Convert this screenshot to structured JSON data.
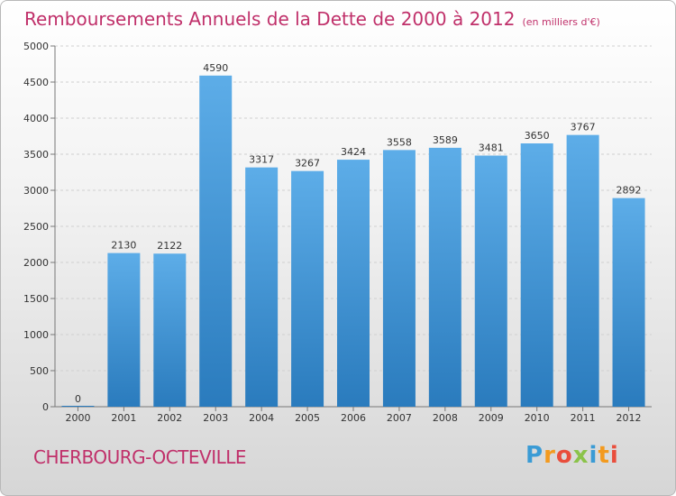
{
  "header": {
    "title": "Remboursements Annuels de la Dette de 2000 à 2012",
    "unit": "(en milliers d'€)"
  },
  "footer": {
    "city": "CHERBOURG-OCTEVILLE",
    "logo_letters": [
      "P",
      "r",
      "o",
      "x",
      "i",
      "t",
      "i"
    ],
    "logo_colors": [
      "#3a9bd5",
      "#f39a1e",
      "#e94e3c",
      "#8bc34a",
      "#3a9bd5",
      "#f39a1e",
      "#e94e3c"
    ]
  },
  "colors": {
    "bar_top": "#5dade8",
    "bar_bottom": "#2a7bbd",
    "accent": "#c0306a"
  },
  "chart_data": {
    "type": "bar",
    "categories": [
      "2000",
      "2001",
      "2002",
      "2003",
      "2004",
      "2005",
      "2006",
      "2007",
      "2008",
      "2009",
      "2010",
      "2011",
      "2012"
    ],
    "values": [
      0,
      2130,
      2122,
      4590,
      3317,
      3267,
      3424,
      3558,
      3589,
      3481,
      3650,
      3767,
      2892
    ],
    "value_labels": [
      "0",
      "2130",
      "2122",
      "4590",
      "3317",
      "3267",
      "3424",
      "3558",
      "3589",
      "3481",
      "3650",
      "3767",
      "2892"
    ],
    "yticks": [
      "0",
      "500",
      "1000",
      "1500",
      "2000",
      "2500",
      "3000",
      "3500",
      "4000",
      "4500",
      "5000"
    ],
    "ylim": [
      0,
      5000
    ],
    "grid": true
  }
}
